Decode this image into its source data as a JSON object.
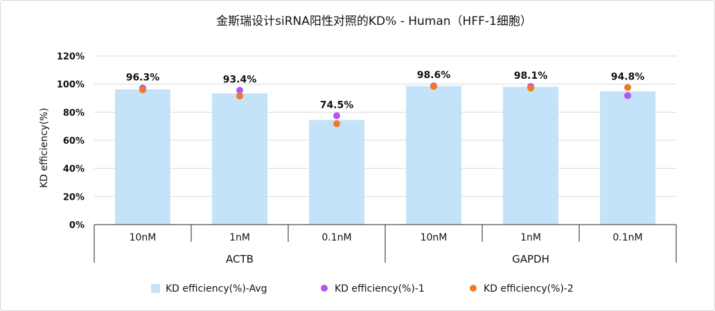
{
  "chart_data": {
    "type": "bar",
    "title": "金斯瑞设计siRNA阳性对照的KD% - Human（HFF-1细胞）",
    "ylabel": "KD efficiency(%)",
    "xlabel": "",
    "ylim": [
      0,
      120
    ],
    "yticks": [
      "0%",
      "20%",
      "40%",
      "60%",
      "80%",
      "100%",
      "120%"
    ],
    "grid": true,
    "legend_position": "bottom",
    "groups": [
      "ACTB",
      "GAPDH"
    ],
    "categories": [
      "10nM",
      "1nM",
      "0.1nM",
      "10nM",
      "1nM",
      "0.1nM"
    ],
    "data_labels": [
      "96.3%",
      "93.4%",
      "74.5%",
      "98.6%",
      "98.1%",
      "94.8%"
    ],
    "series": [
      {
        "name": "KD efficiency(%)-Avg",
        "type": "bar",
        "color": "#c5e3f8",
        "values": [
          96.3,
          93.4,
          74.5,
          98.6,
          98.1,
          94.8
        ]
      },
      {
        "name": "KD efficiency(%)-1",
        "type": "scatter",
        "color": "#b556f0",
        "values": [
          97.2,
          95.6,
          77.5,
          98.8,
          98.3,
          91.8
        ]
      },
      {
        "name": "KD efficiency(%)-2",
        "type": "scatter",
        "color": "#f07a23",
        "values": [
          95.9,
          91.5,
          71.8,
          98.3,
          97.2,
          97.6
        ]
      }
    ]
  }
}
